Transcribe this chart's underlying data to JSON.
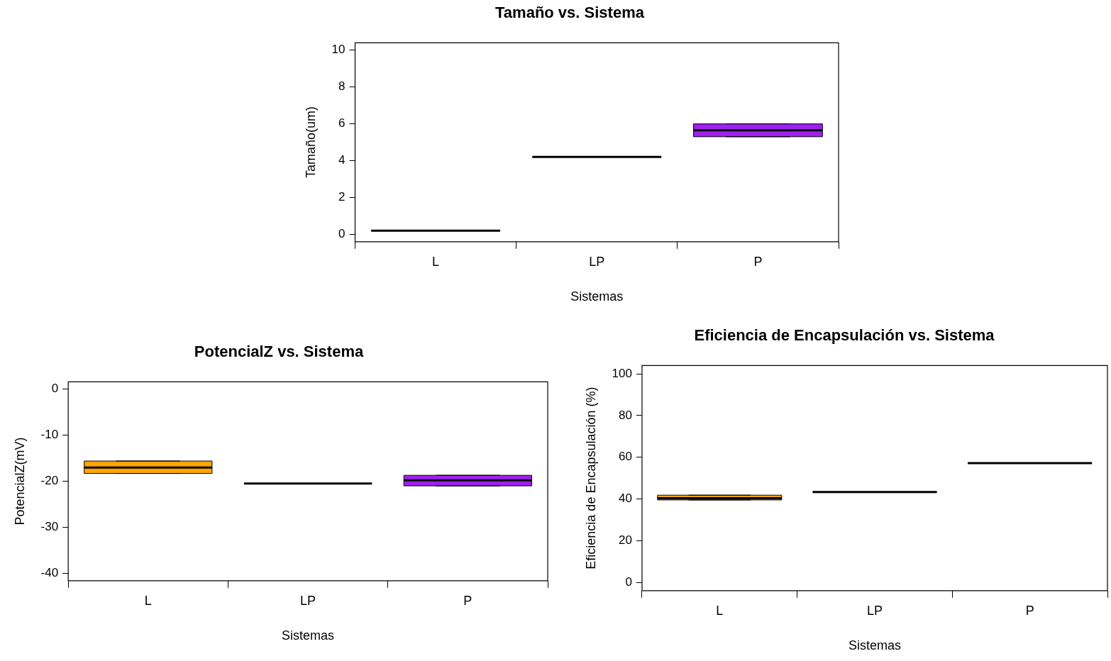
{
  "chart_data": [
    {
      "type": "box",
      "title": "Tamaño vs. Sistema",
      "xlabel": "Sistemas",
      "ylabel": "Tamaño(um)",
      "categories": [
        "L",
        "LP",
        "P"
      ],
      "colors": [
        "#000000",
        "#000000",
        "#a020f0"
      ],
      "boxes": [
        {
          "low": 0.2,
          "q1": 0.2,
          "median": 0.2,
          "q3": 0.2,
          "high": 0.2
        },
        {
          "low": 4.2,
          "q1": 4.2,
          "median": 4.2,
          "q3": 4.2,
          "high": 4.2
        },
        {
          "low": 5.3,
          "q1": 5.3,
          "median": 5.65,
          "q3": 6.0,
          "high": 6.0
        }
      ],
      "ylim": [
        -0.4,
        10.4
      ],
      "yticks": [
        0,
        2,
        4,
        6,
        8,
        10
      ]
    },
    {
      "type": "box",
      "title": "PotencialZ vs. Sistema",
      "xlabel": "Sistemas",
      "ylabel": "PotencialZ(mV)",
      "categories": [
        "L",
        "LP",
        "P"
      ],
      "colors": [
        "#ffa500",
        "#000000",
        "#a020f0"
      ],
      "boxes": [
        {
          "low": -18.3,
          "q1": -18.3,
          "median": -17,
          "q3": -15.6,
          "high": -15.6
        },
        {
          "low": -20.5,
          "q1": -20.5,
          "median": -20.5,
          "q3": -20.5,
          "high": -20.5
        },
        {
          "low": -21,
          "q1": -21,
          "median": -19.8,
          "q3": -18.7,
          "high": -18.7
        }
      ],
      "ylim": [
        -41.6,
        1.6
      ],
      "yticks": [
        0,
        -10,
        -20,
        -30,
        -40
      ]
    },
    {
      "type": "box",
      "title": "Eficiencia de Encapsulación vs. Sistema",
      "xlabel": "Sistemas",
      "ylabel": "Eficiencia de Encapsulación (%)",
      "categories": [
        "L",
        "LP",
        "P"
      ],
      "colors": [
        "#ffa500",
        "#000000",
        "#000000"
      ],
      "boxes": [
        {
          "low": 39.5,
          "q1": 39.5,
          "median": 40.3,
          "q3": 41.8,
          "high": 41.8
        },
        {
          "low": 43.3,
          "q1": 43.3,
          "median": 43.3,
          "q3": 43.3,
          "high": 43.3
        },
        {
          "low": 57.2,
          "q1": 57.2,
          "median": 57.2,
          "q3": 57.2,
          "high": 57.2
        }
      ],
      "ylim": [
        -4,
        104
      ],
      "yticks": [
        0,
        20,
        40,
        60,
        80,
        100
      ]
    }
  ]
}
